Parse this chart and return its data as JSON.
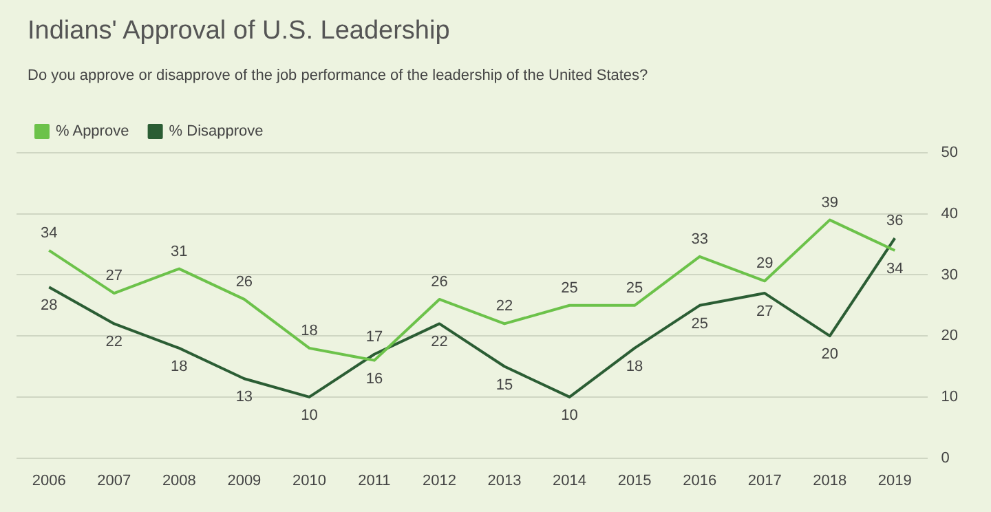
{
  "chart_data": {
    "type": "line",
    "title": "Indians' Approval of U.S. Leadership",
    "subtitle": "Do you approve or disapprove of the job performance of the leadership of the United States?",
    "categories": [
      "2006",
      "2007",
      "2008",
      "2009",
      "2010",
      "2011",
      "2012",
      "2013",
      "2014",
      "2015",
      "2016",
      "2017",
      "2018",
      "2019"
    ],
    "series": [
      {
        "name": "% Approve",
        "color": "#6cc24a",
        "values": [
          34,
          27,
          31,
          26,
          18,
          16,
          26,
          22,
          25,
          25,
          33,
          29,
          39,
          34
        ]
      },
      {
        "name": "% Disapprove",
        "color": "#2b5d34",
        "values": [
          28,
          22,
          18,
          13,
          10,
          17,
          22,
          15,
          10,
          18,
          25,
          27,
          20,
          36
        ]
      }
    ],
    "ylim": [
      0,
      50
    ],
    "yticks": [
      0,
      10,
      20,
      30,
      40,
      50
    ],
    "grid": "y",
    "legend": "top left",
    "marker": "none",
    "data_labels": true
  }
}
